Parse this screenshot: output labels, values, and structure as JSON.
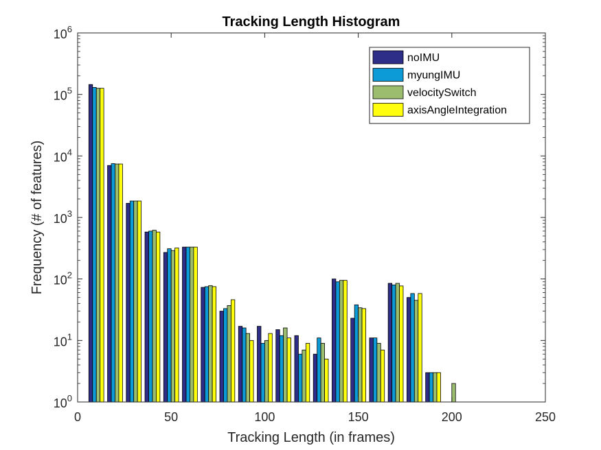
{
  "chart_data": {
    "type": "bar",
    "title": "Tracking Length Histogram",
    "xlabel": "Tracking Length (in frames)",
    "ylabel": "Frequency (# of features)",
    "xlim": [
      0,
      250
    ],
    "ylim": [
      1,
      1000000
    ],
    "yscale": "log",
    "xticks": [
      "0",
      "50",
      "100",
      "150",
      "200",
      "250"
    ],
    "yticks": [
      {
        "base": "10",
        "exp": "0"
      },
      {
        "base": "10",
        "exp": "1"
      },
      {
        "base": "10",
        "exp": "2"
      },
      {
        "base": "10",
        "exp": "3"
      },
      {
        "base": "10",
        "exp": "4"
      },
      {
        "base": "10",
        "exp": "5"
      },
      {
        "base": "10",
        "exp": "6"
      }
    ],
    "grid": false,
    "legend_position": "top-right",
    "bin_centers": [
      10,
      20,
      30,
      40,
      50,
      60,
      70,
      80,
      90,
      100,
      110,
      120,
      130,
      140,
      150,
      160,
      170,
      180,
      190,
      200
    ],
    "series": [
      {
        "name": "noIMU",
        "color": "#2e2d87",
        "values": [
          145000,
          7000,
          1700,
          580,
          270,
          330,
          73,
          30,
          17,
          17,
          15,
          12,
          6,
          100,
          23,
          11,
          85,
          50,
          3,
          1
        ]
      },
      {
        "name": "myungIMU",
        "color": "#0c9bd6",
        "values": [
          130000,
          7500,
          1850,
          600,
          310,
          330,
          75,
          33,
          16,
          9,
          12,
          6,
          11,
          90,
          38,
          11,
          80,
          58,
          3,
          1
        ]
      },
      {
        "name": "velocitySwitch",
        "color": "#9cbd6e",
        "values": [
          126000,
          7400,
          1850,
          620,
          290,
          330,
          78,
          37,
          13,
          10,
          16,
          7,
          9,
          95,
          34,
          9,
          85,
          45,
          3,
          2
        ]
      },
      {
        "name": "axisAngleIntegration",
        "color": "#ffff0d",
        "values": [
          126000,
          7400,
          1850,
          580,
          320,
          330,
          75,
          46,
          10,
          13,
          11,
          9,
          5,
          95,
          33,
          7,
          77,
          58,
          3,
          1
        ]
      }
    ]
  }
}
